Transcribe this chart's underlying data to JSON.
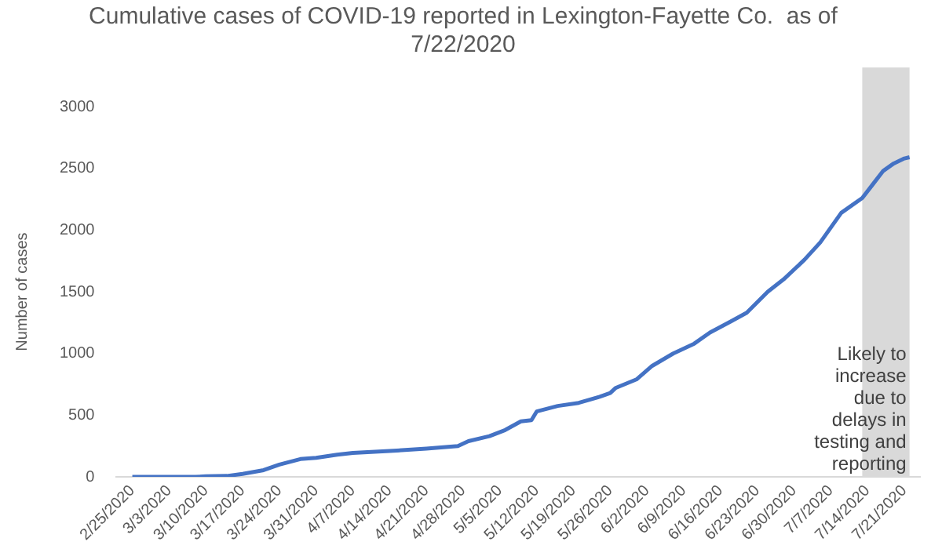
{
  "chart_data": {
    "type": "line",
    "title": "Cumulative cases of COVID-19 reported in Lexington-Fayette Co.  as of 7/22/2020",
    "ylabel": "Number of cases",
    "x": [
      "2020-02-25",
      "2020-03-08",
      "2020-03-10",
      "2020-03-14",
      "2020-03-17",
      "2020-03-21",
      "2020-03-24",
      "2020-03-28",
      "2020-03-31",
      "2020-04-04",
      "2020-04-07",
      "2020-04-14",
      "2020-04-21",
      "2020-04-27",
      "2020-04-29",
      "2020-05-03",
      "2020-05-06",
      "2020-05-09",
      "2020-05-11",
      "2020-05-12",
      "2020-05-16",
      "2020-05-20",
      "2020-05-24",
      "2020-05-26",
      "2020-05-27",
      "2020-05-31",
      "2020-06-03",
      "2020-06-07",
      "2020-06-11",
      "2020-06-14",
      "2020-06-18",
      "2020-06-21",
      "2020-06-25",
      "2020-06-28",
      "2020-07-02",
      "2020-07-05",
      "2020-07-09",
      "2020-07-13",
      "2020-07-15",
      "2020-07-17",
      "2020-07-19",
      "2020-07-21",
      "2020-07-22"
    ],
    "series": [
      {
        "color": "#4472c4",
        "values": [
          0,
          0,
          5,
          8,
          25,
          55,
          100,
          145,
          155,
          180,
          195,
          210,
          230,
          250,
          290,
          330,
          380,
          450,
          460,
          530,
          575,
          600,
          650,
          680,
          720,
          790,
          900,
          1000,
          1080,
          1170,
          1260,
          1330,
          1500,
          1600,
          1760,
          1900,
          2140,
          2260,
          2370,
          2480,
          2540,
          2580,
          2590
        ]
      }
    ],
    "xlim": [
      "2020-02-22",
      "2020-07-24"
    ],
    "xticks": [
      {
        "value": "2020-02-25",
        "label": "2/25/2020"
      },
      {
        "value": "2020-03-03",
        "label": "3/3/2020"
      },
      {
        "value": "2020-03-10",
        "label": "3/10/2020"
      },
      {
        "value": "2020-03-17",
        "label": "3/17/2020"
      },
      {
        "value": "2020-03-24",
        "label": "3/24/2020"
      },
      {
        "value": "2020-03-31",
        "label": "3/31/2020"
      },
      {
        "value": "2020-04-07",
        "label": "4/7/2020"
      },
      {
        "value": "2020-04-14",
        "label": "4/14/2020"
      },
      {
        "value": "2020-04-21",
        "label": "4/21/2020"
      },
      {
        "value": "2020-04-28",
        "label": "4/28/2020"
      },
      {
        "value": "2020-05-05",
        "label": "5/5/2020"
      },
      {
        "value": "2020-05-12",
        "label": "5/12/2020"
      },
      {
        "value": "2020-05-19",
        "label": "5/19/2020"
      },
      {
        "value": "2020-05-26",
        "label": "5/26/2020"
      },
      {
        "value": "2020-06-02",
        "label": "6/2/2020"
      },
      {
        "value": "2020-06-09",
        "label": "6/9/2020"
      },
      {
        "value": "2020-06-16",
        "label": "6/16/2020"
      },
      {
        "value": "2020-06-23",
        "label": "6/23/2020"
      },
      {
        "value": "2020-06-30",
        "label": "6/30/2020"
      },
      {
        "value": "2020-07-07",
        "label": "7/7/2020"
      },
      {
        "value": "2020-07-14",
        "label": "7/14/2020"
      },
      {
        "value": "2020-07-21",
        "label": "7/21/2020"
      }
    ],
    "ylim": [
      0,
      3000
    ],
    "yticks": [
      0,
      500,
      1000,
      1500,
      2000,
      2500,
      3000
    ],
    "bands": [
      {
        "axis": "x",
        "from": "2020-07-13",
        "to": "2020-07-22",
        "label": "Likely to increase due to delays in testing and reporting",
        "color": "#d9d9d9"
      }
    ],
    "grid": false,
    "legend": false,
    "marker": "none",
    "line_style": "solid"
  }
}
